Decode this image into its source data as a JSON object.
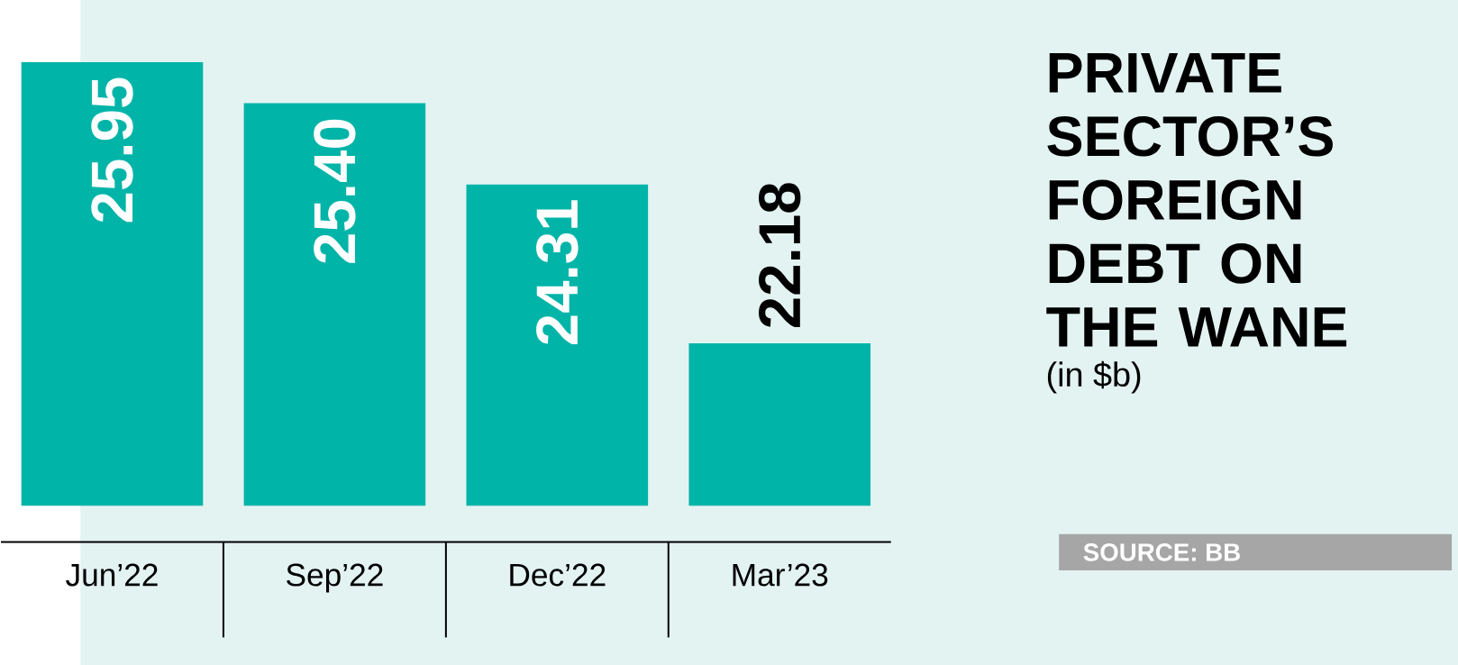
{
  "chart_data": {
    "type": "bar",
    "title": "PRIVATE SECTOR’S FOREIGN DEBT ON THE WANE",
    "subtitle": "(in $b)",
    "categories": [
      "Jun’22",
      "Sep’22",
      "Dec’22",
      "Mar’23"
    ],
    "values": [
      25.95,
      25.4,
      24.31,
      22.18
    ],
    "value_labels": [
      "25.95",
      "25.40",
      "24.31",
      "22.18"
    ],
    "color": "#00b4a8",
    "ylim": [
      20,
      26
    ],
    "tick_labels": "x",
    "annotations": [
      "SOURCE: BB"
    ]
  }
}
